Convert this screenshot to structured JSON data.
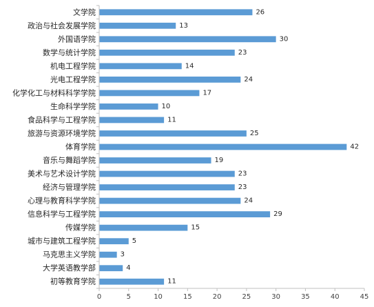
{
  "chart_data": {
    "type": "bar",
    "orientation": "horizontal",
    "title": "",
    "xlabel": "",
    "ylabel": "",
    "categories": [
      "文学院",
      "政治与社会发展学院",
      "外国语学院",
      "数学与统计学院",
      "机电工程学院",
      "光电工程学院",
      "化学化工与材料科学学院",
      "生命科学学院",
      "食品科学与工程学院",
      "旅游与资源环境学院",
      "体育学院",
      "音乐与舞蹈学院",
      "美术与艺术设计学院",
      "经济与管理学院",
      "心理与教育科学学院",
      "信息科学与工程学院",
      "传媒学院",
      "城市与建筑工程学院",
      "马克思主义学院",
      "大学英语教学部",
      "初等教育学院"
    ],
    "values": [
      26,
      13,
      30,
      23,
      14,
      24,
      17,
      10,
      11,
      25,
      42,
      19,
      23,
      23,
      24,
      29,
      15,
      5,
      3,
      4,
      11
    ],
    "xlim": [
      0,
      45
    ],
    "xticks": [
      0,
      5,
      10,
      15,
      20,
      25,
      30,
      35,
      40,
      45
    ],
    "grid": false,
    "legend": "none",
    "bar_color": "#5B9BD5",
    "axis_color": "#BFBFBF"
  }
}
